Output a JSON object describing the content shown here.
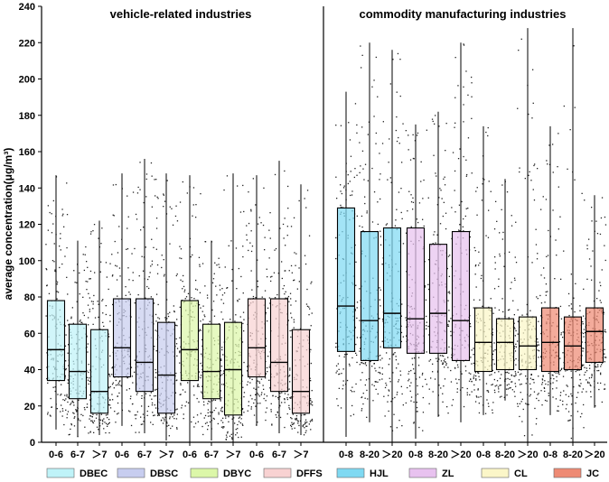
{
  "chart_data": {
    "type": "box",
    "ylabel": "average concentration(μg/m³)",
    "ylim": [
      0,
      240
    ],
    "yticks": [
      0,
      20,
      40,
      60,
      80,
      100,
      120,
      140,
      160,
      180,
      200,
      220,
      240
    ],
    "panels": [
      {
        "title": "vehicle-related industries"
      },
      {
        "title": "commodity manufacturing industries"
      }
    ],
    "legend": [
      {
        "name": "DBEC",
        "color": "#bff3f8"
      },
      {
        "name": "DBSC",
        "color": "#c7cdef"
      },
      {
        "name": "DBYC",
        "color": "#dcf7a9"
      },
      {
        "name": "DFFS",
        "color": "#f8d2d2"
      },
      {
        "name": "HJL",
        "color": "#7fd9f2"
      },
      {
        "name": "ZL",
        "color": "#e8c2ef"
      },
      {
        "name": "CL",
        "color": "#fbf6c8"
      },
      {
        "name": "JC",
        "color": "#ee8a74"
      }
    ],
    "boxes": [
      {
        "panel": 0,
        "group": "DBEC",
        "label": "0-6",
        "min": 7,
        "q1": 34,
        "median": 51,
        "q3": 78,
        "max": 147,
        "color": "#bff3f8"
      },
      {
        "panel": 0,
        "group": "DBEC",
        "label": "6-7",
        "min": 3,
        "q1": 24,
        "median": 39,
        "q3": 65,
        "max": 111,
        "color": "#bff3f8"
      },
      {
        "panel": 0,
        "group": "DBEC",
        "label": "＞7",
        "min": 4,
        "q1": 16,
        "median": 28,
        "q3": 62,
        "max": 122,
        "color": "#bff3f8"
      },
      {
        "panel": 0,
        "group": "DBSC",
        "label": "0-6",
        "min": 9,
        "q1": 36,
        "median": 52,
        "q3": 79,
        "max": 148,
        "color": "#c7cdef"
      },
      {
        "panel": 0,
        "group": "DBSC",
        "label": "6-7",
        "min": 5,
        "q1": 28,
        "median": 44,
        "q3": 79,
        "max": 156,
        "color": "#c7cdef"
      },
      {
        "panel": 0,
        "group": "DBSC",
        "label": "＞7",
        "min": 1,
        "q1": 16,
        "median": 37,
        "q3": 66,
        "max": 148,
        "color": "#c7cdef"
      },
      {
        "panel": 0,
        "group": "DBYC",
        "label": "0-6",
        "min": 0,
        "q1": 34,
        "median": 51,
        "q3": 78,
        "max": 147,
        "color": "#dcf7a9"
      },
      {
        "panel": 0,
        "group": "DBYC",
        "label": "6-7",
        "min": 1,
        "q1": 24,
        "median": 39,
        "q3": 65,
        "max": 111,
        "color": "#dcf7a9"
      },
      {
        "panel": 0,
        "group": "DBYC",
        "label": "＞7",
        "min": 0,
        "q1": 15,
        "median": 40,
        "q3": 66,
        "max": 148,
        "color": "#dcf7a9"
      },
      {
        "panel": 0,
        "group": "DFFS",
        "label": "0-6",
        "min": 9,
        "q1": 36,
        "median": 52,
        "q3": 79,
        "max": 147,
        "color": "#f8d2d2"
      },
      {
        "panel": 0,
        "group": "DFFS",
        "label": "6-7",
        "min": 5,
        "q1": 28,
        "median": 44,
        "q3": 79,
        "max": 155,
        "color": "#f8d2d2"
      },
      {
        "panel": 0,
        "group": "DFFS",
        "label": "＞7",
        "min": 4,
        "q1": 16,
        "median": 28,
        "q3": 62,
        "max": 142,
        "color": "#f8d2d2"
      },
      {
        "panel": 1,
        "group": "HJL",
        "label": "0-8",
        "min": 3,
        "q1": 50,
        "median": 75,
        "q3": 129,
        "max": 193,
        "color": "#7fd9f2"
      },
      {
        "panel": 1,
        "group": "HJL",
        "label": "8-20",
        "min": 11,
        "q1": 45,
        "median": 67,
        "q3": 116,
        "max": 220,
        "color": "#7fd9f2"
      },
      {
        "panel": 1,
        "group": "HJL",
        "label": "＞20",
        "min": 0,
        "q1": 52,
        "median": 71,
        "q3": 118,
        "max": 216,
        "color": "#7fd9f2"
      },
      {
        "panel": 1,
        "group": "ZL",
        "label": "0-8",
        "min": 2,
        "q1": 49,
        "median": 68,
        "q3": 118,
        "max": 175,
        "color": "#e8c2ef"
      },
      {
        "panel": 1,
        "group": "ZL",
        "label": "8-20",
        "min": 14,
        "q1": 49,
        "median": 71,
        "q3": 109,
        "max": 182,
        "color": "#e8c2ef"
      },
      {
        "panel": 1,
        "group": "ZL",
        "label": "＞20",
        "min": 11,
        "q1": 45,
        "median": 67,
        "q3": 116,
        "max": 220,
        "color": "#e8c2ef"
      },
      {
        "panel": 1,
        "group": "CL",
        "label": "0-8",
        "min": 15,
        "q1": 39,
        "median": 55,
        "q3": 74,
        "max": 174,
        "color": "#fbf6c8"
      },
      {
        "panel": 1,
        "group": "CL",
        "label": "8-20",
        "min": 23,
        "q1": 40,
        "median": 55,
        "q3": 68,
        "max": 145,
        "color": "#fbf6c8"
      },
      {
        "panel": 1,
        "group": "CL",
        "label": "＞20",
        "min": 0,
        "q1": 40,
        "median": 53,
        "q3": 69,
        "max": 228,
        "color": "#fbf6c8"
      },
      {
        "panel": 1,
        "group": "JC",
        "label": "0-8",
        "min": 15,
        "q1": 39,
        "median": 55,
        "q3": 74,
        "max": 174,
        "color": "#ee8a74"
      },
      {
        "panel": 1,
        "group": "JC",
        "label": "8-20",
        "min": 0,
        "q1": 40,
        "median": 53,
        "q3": 69,
        "max": 228,
        "color": "#ee8a74"
      },
      {
        "panel": 1,
        "group": "JC",
        "label": "＞20",
        "min": 19,
        "q1": 44,
        "median": 61,
        "q3": 74,
        "max": 136,
        "color": "#ee8a74"
      }
    ]
  }
}
